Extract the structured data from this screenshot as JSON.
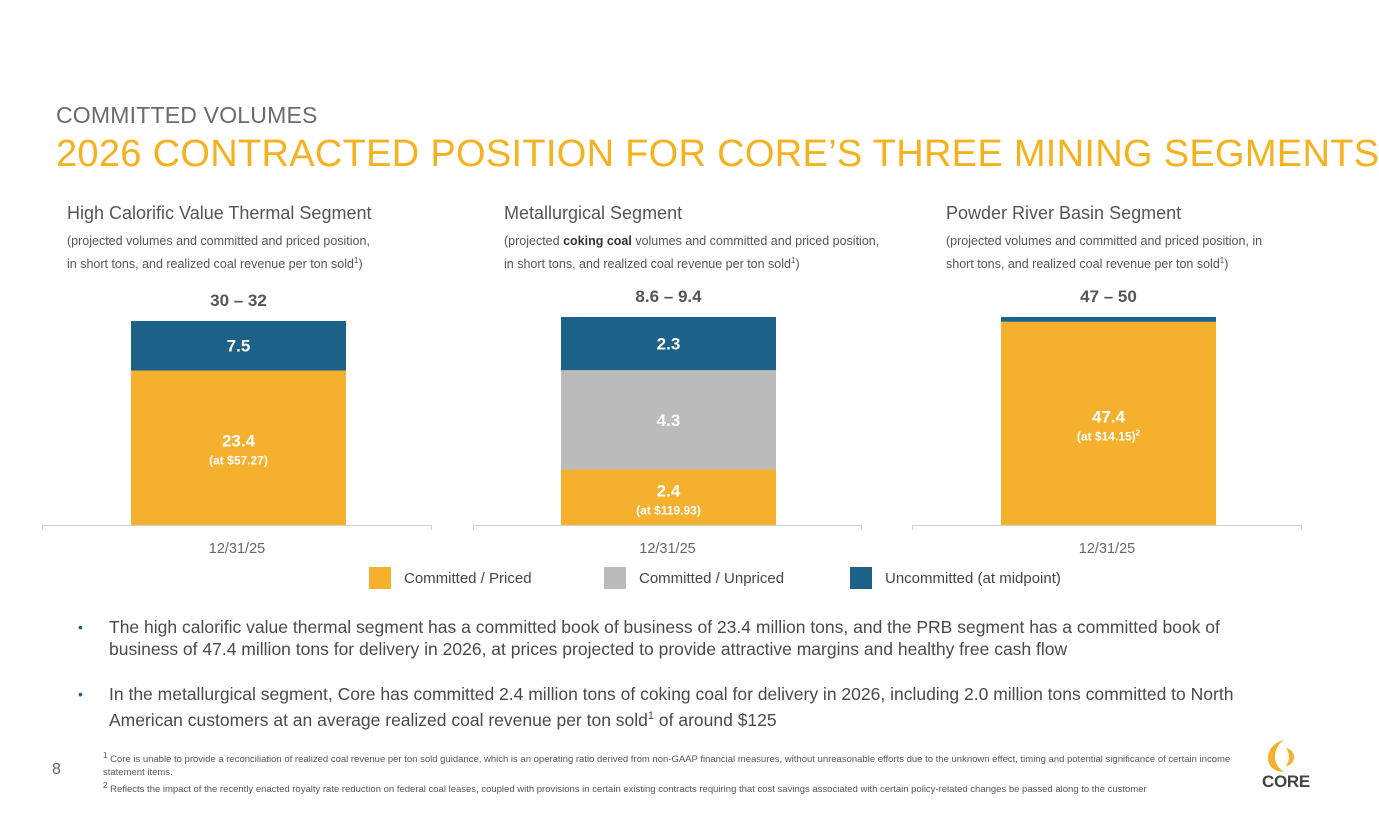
{
  "header": {
    "subtitle": "COMMITTED VOLUMES",
    "title": "2026 CONTRACTED POSITION FOR CORE’S THREE MINING SEGMENTS"
  },
  "colors": {
    "committed_priced": "#f5b12e",
    "committed_unpriced": "#bbbbbb",
    "uncommitted": "#1c6188",
    "title_accent": "#f5b21e"
  },
  "segments": [
    {
      "title": "High Calorific Value Thermal Segment",
      "note_pre": "(projected volumes and committed and priced position,",
      "note_bold": "",
      "note_post": "in short tons, and realized coal revenue per ton sold",
      "note_sup": "1",
      "note_end": ")"
    },
    {
      "title": "Metallurgical Segment",
      "note_pre": "(projected ",
      "note_bold": "coking coal",
      "note_post": " volumes and committed and priced position, in short tons, and realized coal revenue per ton sold",
      "note_sup": "1",
      "note_end": ")"
    },
    {
      "title": "Powder River Basin Segment",
      "note_pre": "(projected volumes and committed and priced position, in short tons, and realized coal revenue per ton sold",
      "note_bold": "",
      "note_post": "",
      "note_sup": "1",
      "note_end": ")"
    }
  ],
  "chart_data": [
    {
      "type": "bar",
      "stacked": true,
      "title": "High Calorific Value Thermal Segment",
      "categories": [
        "12/31/25"
      ],
      "total_label": "30 – 32",
      "series": [
        {
          "name": "Committed / Priced",
          "values": [
            23.4
          ],
          "label": "23.4",
          "sublabel": "(at $57.27)",
          "sup": "",
          "color": "#f5b12e"
        },
        {
          "name": "Committed / Unpriced",
          "values": [
            0
          ],
          "label": "",
          "sublabel": "",
          "sup": "",
          "color": "#bbbbbb"
        },
        {
          "name": "Uncommitted (at midpoint)",
          "values": [
            7.5
          ],
          "label": "7.5",
          "sublabel": "",
          "sup": "",
          "color": "#1c6188"
        }
      ],
      "ylim": [
        0,
        31.5
      ]
    },
    {
      "type": "bar",
      "stacked": true,
      "title": "Metallurgical Segment",
      "categories": [
        "12/31/25"
      ],
      "total_label": "8.6 – 9.4",
      "series": [
        {
          "name": "Committed / Priced",
          "values": [
            2.4
          ],
          "label": "2.4",
          "sublabel": "(at $119.93)",
          "sup": "",
          "color": "#f5b12e"
        },
        {
          "name": "Committed / Unpriced",
          "values": [
            4.3
          ],
          "label": "4.3",
          "sublabel": "",
          "sup": "",
          "color": "#bbbbbb"
        },
        {
          "name": "Uncommitted (at midpoint)",
          "values": [
            2.3
          ],
          "label": "2.3",
          "sublabel": "",
          "sup": "",
          "color": "#1c6188"
        }
      ],
      "ylim": [
        0,
        9.0
      ]
    },
    {
      "type": "bar",
      "stacked": true,
      "title": "Powder River Basin Segment",
      "categories": [
        "12/31/25"
      ],
      "total_label": "47 – 50",
      "series": [
        {
          "name": "Committed / Priced",
          "values": [
            47.4
          ],
          "label": "47.4",
          "sublabel": "(at $14.15)",
          "sup": "2",
          "color": "#f5b12e"
        },
        {
          "name": "Committed / Unpriced",
          "values": [
            0
          ],
          "label": "",
          "sublabel": "",
          "sup": "",
          "color": "#bbbbbb"
        },
        {
          "name": "Uncommitted (at midpoint)",
          "values": [
            1.1
          ],
          "label": "",
          "sublabel": "",
          "sup": "",
          "color": "#1c6188"
        }
      ],
      "ylim": [
        0,
        48.5
      ]
    }
  ],
  "legend": [
    {
      "label": "Committed / Priced",
      "color": "#f5b12e"
    },
    {
      "label": "Committed / Unpriced",
      "color": "#bbbbbb"
    },
    {
      "label": "Uncommitted (at midpoint)",
      "color": "#1c6188"
    }
  ],
  "bullets": [
    "The high calorific value thermal segment has a committed book of business of 23.4 million tons, and the PRB segment has a committed book of business of 47.4 million tons for delivery in 2026, at prices projected to provide attractive margins and healthy free cash flow",
    {
      "pre": "In the metallurgical segment, Core has committed 2.4 million tons of coking coal for delivery in 2026, including 2.0 million tons committed to North American customers at an average realized coal revenue per ton sold",
      "sup": "1",
      "post": " of around $125"
    }
  ],
  "footnotes": {
    "fn1_sup": "1",
    "fn1": " Core is unable to provide a reconciliation of realized coal revenue per ton sold guidance, which is an operating ratio derived from non-GAAP financial measures, without unreasonable efforts due to the unknown effect, timing and potential significance of certain income statement items.",
    "fn2_sup": "2",
    "fn2": " Reflects the impact of the recently enacted royalty rate reduction on federal coal leases, coupled with provisions in certain existing contracts requiring that cost savings associated with certain policy-related changes be passed along to the customer"
  },
  "page_number": "8",
  "logo": {
    "text": "CORE"
  }
}
